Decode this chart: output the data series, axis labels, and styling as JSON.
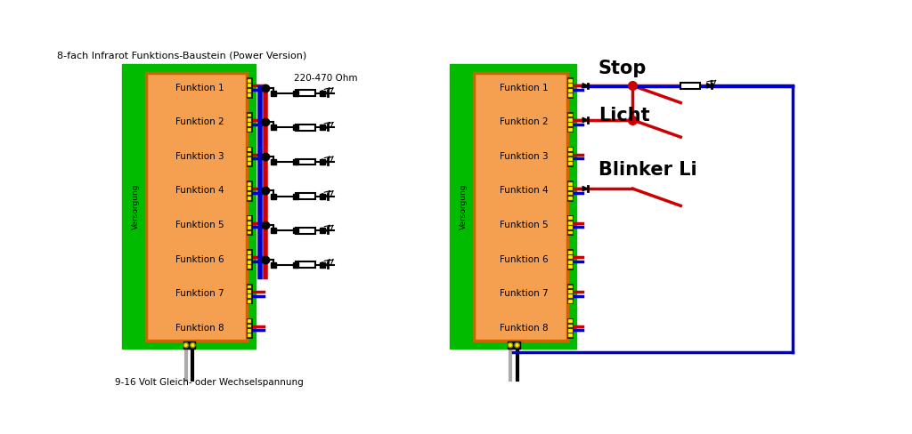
{
  "title": "8-fach Infrarot Funktions-Baustein (Power Version)",
  "bottom_text": "9-16 Volt Gleich- oder Wechselspannung",
  "funktion_labels": [
    "Funktion 1",
    "Funktion 2",
    "Funktion 3",
    "Funktion 4",
    "Funktion 5",
    "Funktion 6",
    "Funktion 7",
    "Funktion 8"
  ],
  "versorgung_label": "Versorgung",
  "stop_label": "Stop",
  "licht_label": "Licht",
  "blinker_label": "Blinker Li",
  "ohm_label": "220-470 Ohm",
  "bg_color": "#ffffff",
  "green_bg": "#00bb00",
  "orange_fill": "#f5a050",
  "orange_border": "#cc6600",
  "red_wire": "#cc0000",
  "blue_wire": "#0000cc",
  "black_color": "#000000",
  "yellow_conn": "#ffee00",
  "dark_connector": "#111111"
}
